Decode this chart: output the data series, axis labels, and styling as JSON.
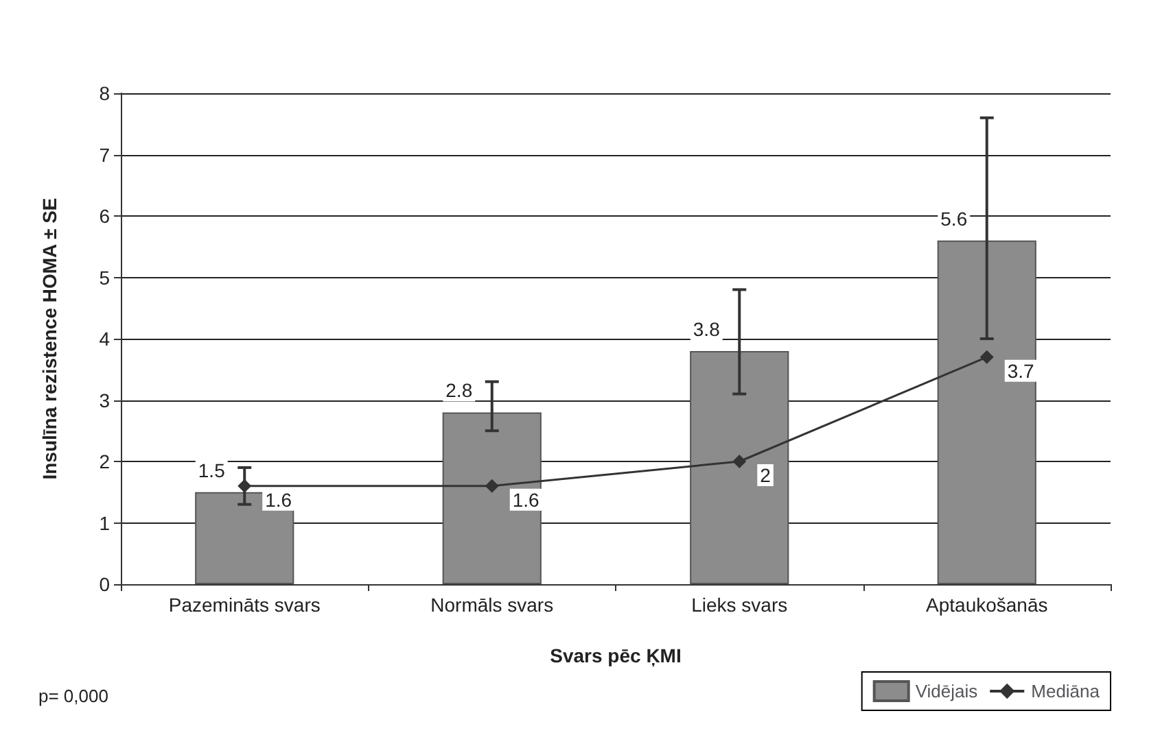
{
  "chart_data": {
    "type": "bar",
    "xlabel": "Svars pēc ĶMI",
    "ylabel": "Insulīna rezistence HOMA ± SE",
    "categories": [
      "Pazemināts svars",
      "Normāls svars",
      "Lieks svars",
      "Aptaukošanās"
    ],
    "series": [
      {
        "name": "Vidējais",
        "color": "#8c8c8c",
        "values": [
          1.5,
          2.8,
          3.8,
          5.6
        ],
        "errors": [
          [
            1.3,
            1.9
          ],
          [
            2.5,
            3.3
          ],
          [
            3.1,
            4.8
          ],
          [
            4.0,
            7.6
          ]
        ]
      },
      {
        "name": "Mediāna",
        "type": "line",
        "color": "#333333",
        "marker": "diamond",
        "values": [
          1.6,
          1.6,
          2,
          3.7
        ]
      }
    ],
    "data_labels": true,
    "ylim": [
      0,
      8
    ],
    "yticks": [
      0,
      1,
      2,
      3,
      4,
      5,
      6,
      7,
      8
    ],
    "grid": "y",
    "legend": "bottom right",
    "annotations": [
      "p= 0,000"
    ]
  }
}
